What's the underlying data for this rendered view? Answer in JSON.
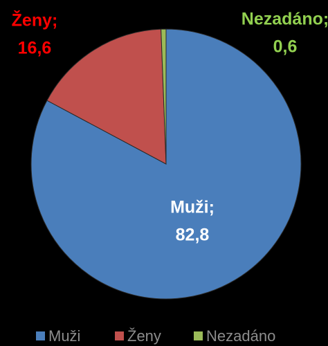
{
  "chart_data": {
    "type": "pie",
    "categories": [
      "Muži",
      "Ženy",
      "Nezadáno"
    ],
    "values": [
      82.8,
      16.6,
      0.6
    ],
    "value_labels": [
      "82,8",
      "16,6",
      "0,6"
    ],
    "data_label_names": [
      "Muži;",
      "Ženy;",
      "Nezadáno;"
    ],
    "colors": [
      "#4a7ebb",
      "#c0504d",
      "#9bbb59"
    ],
    "label_colors": [
      "#ffffff",
      "#ff0000",
      "#92d050"
    ],
    "legend": "bottom"
  }
}
